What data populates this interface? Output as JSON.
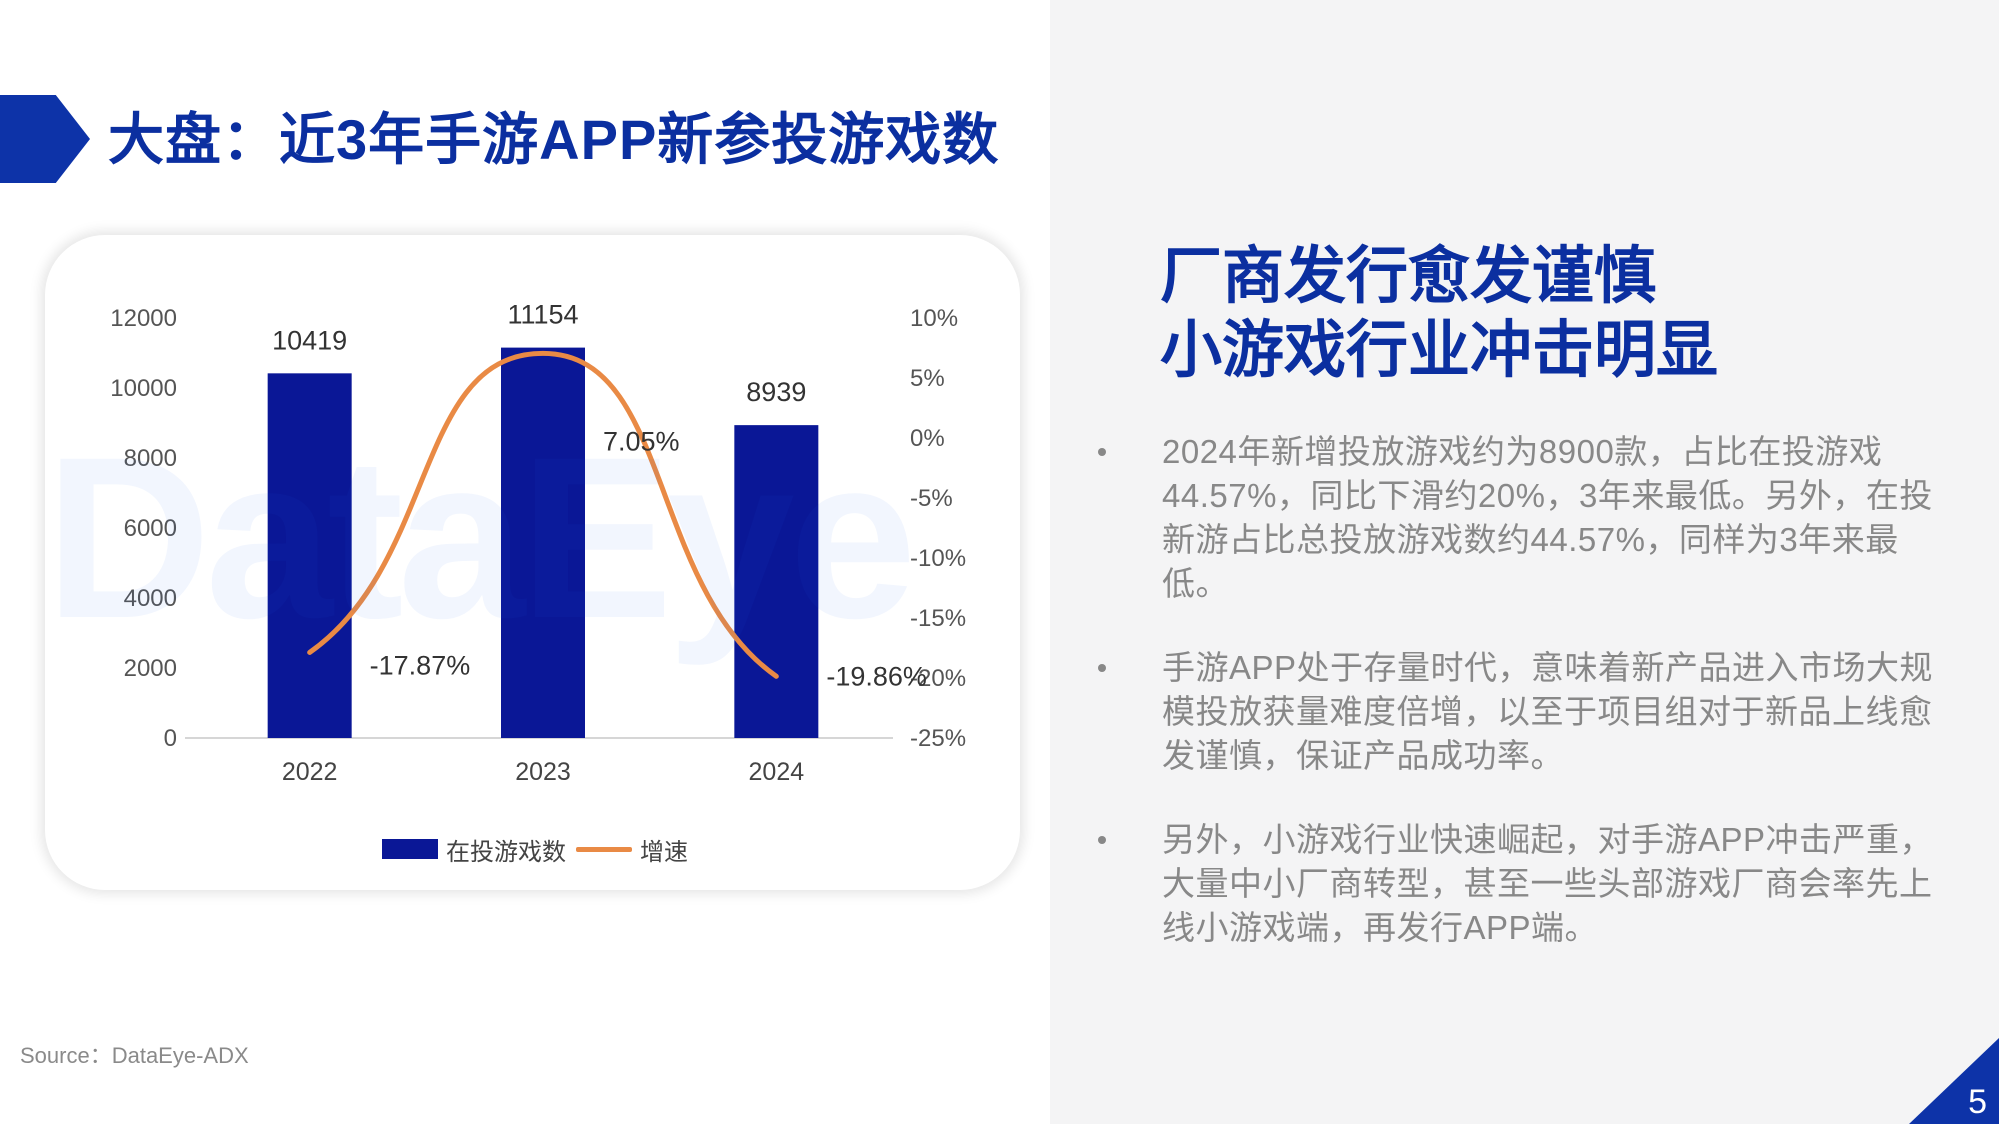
{
  "page": {
    "title": "大盘：近3年手游APP新参投游戏数",
    "source": "Source：DataEye-ADX",
    "page_number": "5",
    "watermark": "DataEye",
    "colors": {
      "accent": "#0b2fa0",
      "bar": "#0a1796",
      "line": "#e98a45",
      "panel": "#f4f4f5"
    }
  },
  "chart_data": {
    "type": "bar",
    "categories": [
      "2022",
      "2023",
      "2024"
    ],
    "series": [
      {
        "name": "在投游戏数",
        "type": "bar",
        "axis": "left",
        "values": [
          10419,
          11154,
          8939
        ],
        "labels": [
          "10419",
          "11154",
          "8939"
        ]
      },
      {
        "name": "增速",
        "type": "line",
        "axis": "right",
        "values": [
          -17.87,
          7.05,
          -19.86
        ],
        "labels": [
          "-17.87%",
          "7.05%",
          "-19.86%"
        ]
      }
    ],
    "ylim": [
      0,
      12000
    ],
    "y_ticks": [
      "0",
      "2000",
      "4000",
      "6000",
      "8000",
      "10000",
      "12000"
    ],
    "y2lim": [
      -25,
      10
    ],
    "y2_ticks": [
      "-25%",
      "-20%",
      "-15%",
      "-10%",
      "-5%",
      "0%",
      "5%",
      "10%"
    ],
    "legend": {
      "bar_label": "在投游戏数",
      "line_label": "增速",
      "position": "bottom"
    },
    "grid": false
  },
  "headline": {
    "line1": "厂商发行愈发谨慎",
    "line2": "小游戏行业冲击明显"
  },
  "bullets": [
    "2024年新增投放游戏约为8900款，占比在投游戏44.57%，同比下滑约20%，3年来最低。另外，在投新游占比总投放游戏数约44.57%，同样为3年来最低。",
    "手游APP处于存量时代，意味着新产品进入市场大规模投放获量难度倍增，以至于项目组对于新品上线愈发谨慎，保证产品成功率。",
    "另外，小游戏行业快速崛起，对手游APP冲击严重，大量中小厂商转型，甚至一些头部游戏厂商会率先上线小游戏端，再发行APP端。"
  ]
}
